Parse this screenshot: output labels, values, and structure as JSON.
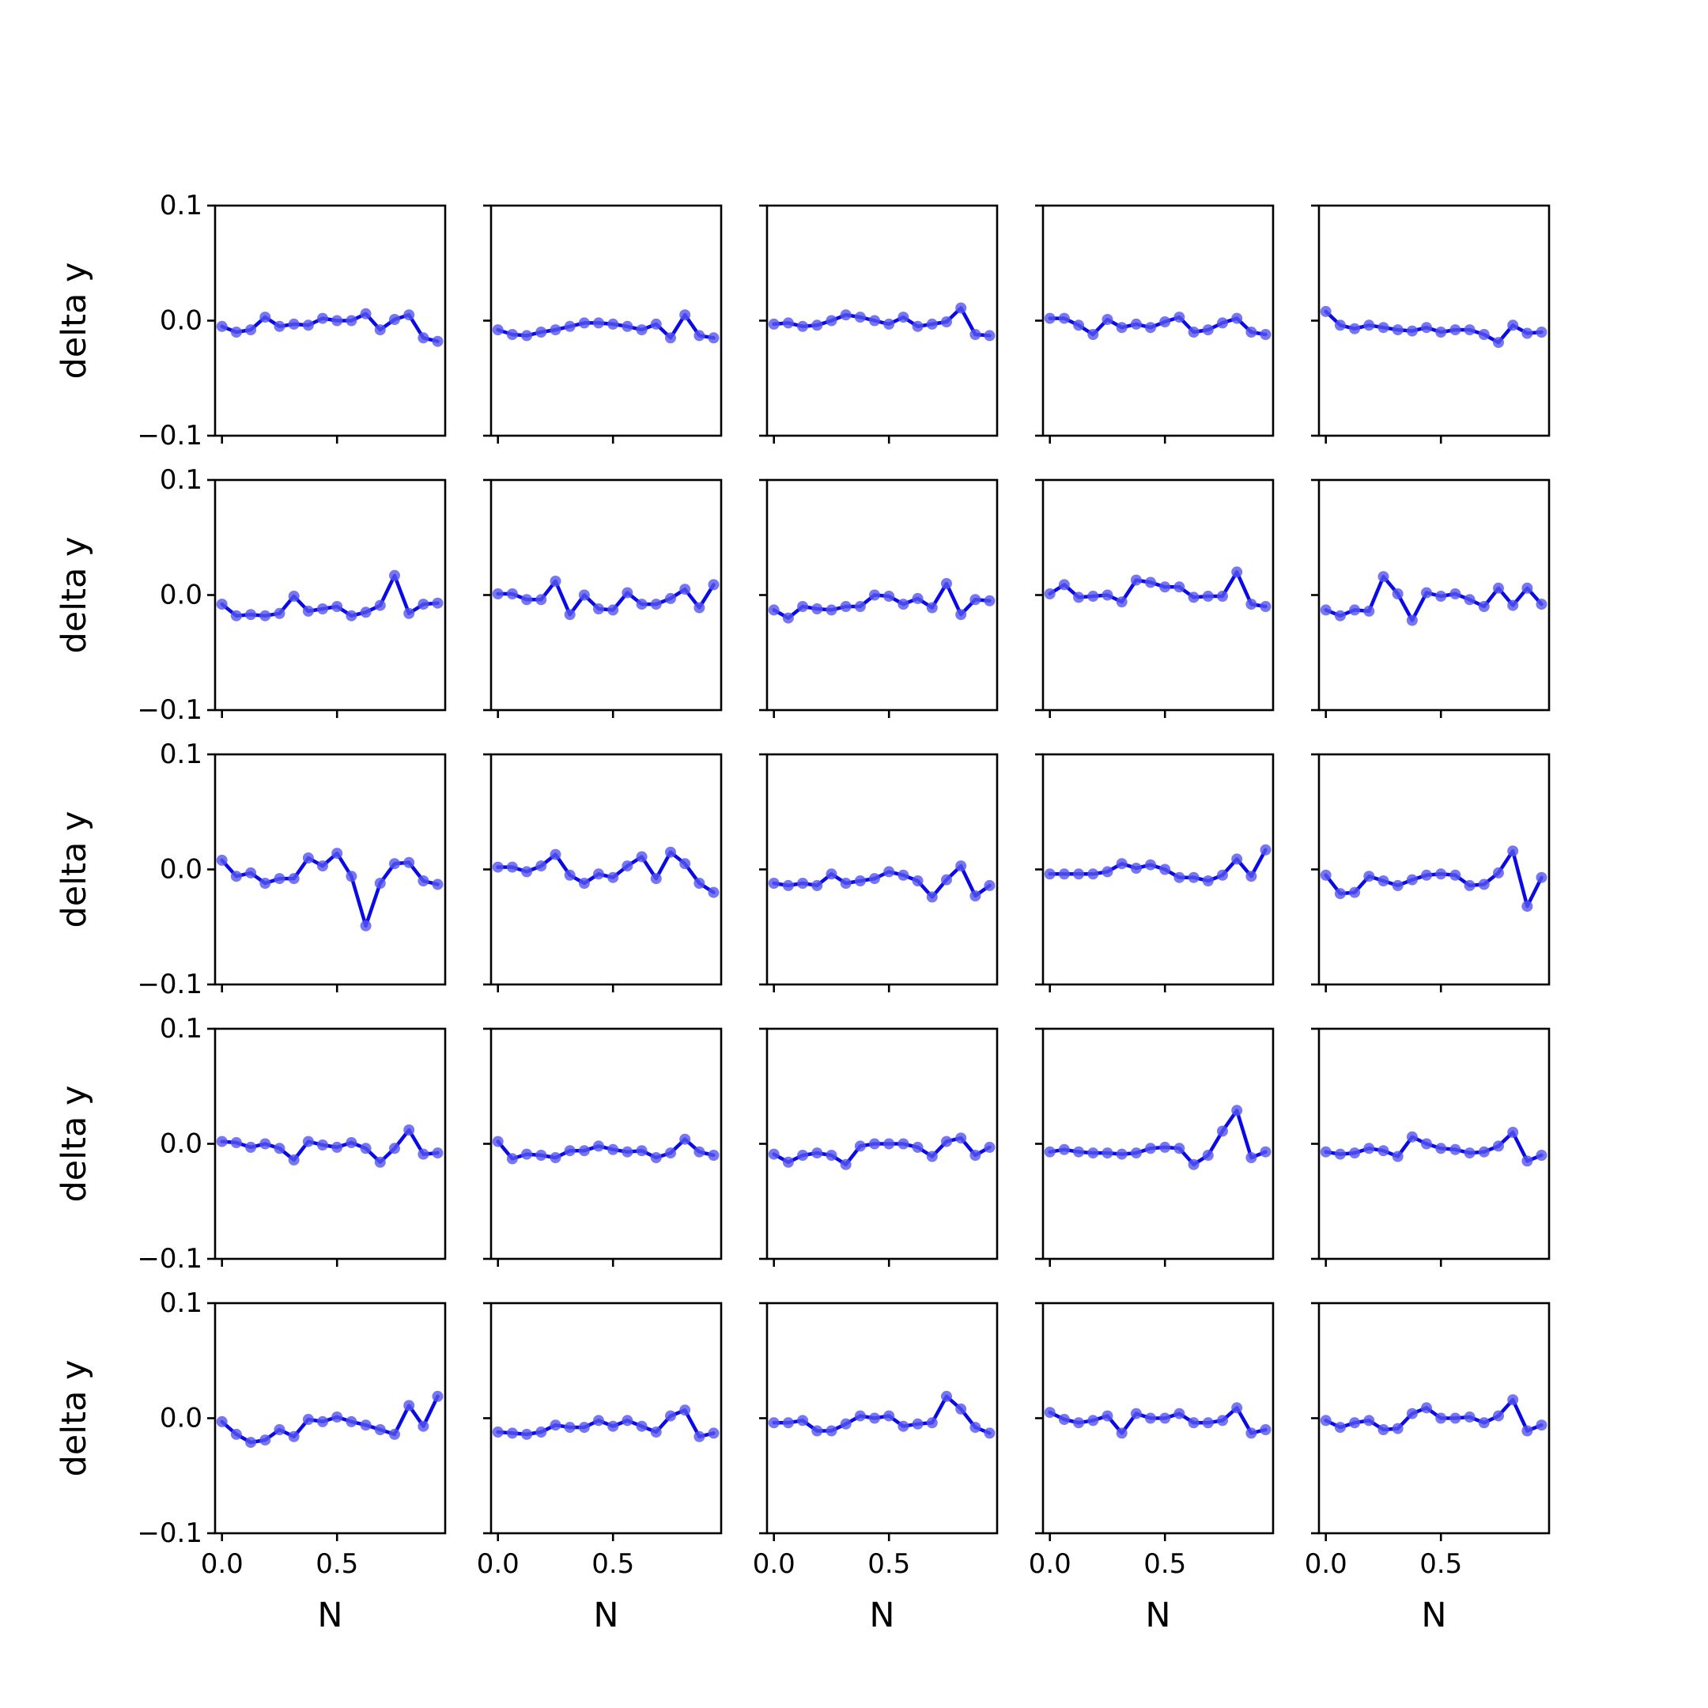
{
  "chart_data": {
    "type": "line",
    "layout": {
      "rows": 5,
      "cols": 5
    },
    "xlabel": "N",
    "ylabel": "delta y",
    "xlim": [
      -0.03,
      0.97
    ],
    "ylim": [
      -0.1,
      0.1
    ],
    "xticks": [
      0.0,
      0.5
    ],
    "xtick_labels": [
      "0.0",
      "0.5"
    ],
    "yticks": [
      -0.1,
      0.0,
      0.1
    ],
    "ytick_labels": [
      "−0.1",
      "0.0",
      "0.1"
    ],
    "x": [
      0.0,
      0.0625,
      0.125,
      0.1875,
      0.25,
      0.3125,
      0.375,
      0.4375,
      0.5,
      0.5625,
      0.625,
      0.6875,
      0.75,
      0.8125,
      0.875,
      0.9375
    ],
    "line_color": "#0a0ae6",
    "marker_color": "#5555f0",
    "panels": [
      {
        "values": [
          -0.005,
          -0.01,
          -0.008,
          0.003,
          -0.005,
          -0.003,
          -0.004,
          0.002,
          0.0,
          0.0,
          0.006,
          -0.008,
          0.001,
          0.005,
          -0.015,
          -0.018
        ]
      },
      {
        "values": [
          -0.008,
          -0.012,
          -0.013,
          -0.01,
          -0.008,
          -0.005,
          -0.002,
          -0.002,
          -0.003,
          -0.005,
          -0.008,
          -0.003,
          -0.015,
          0.005,
          -0.013,
          -0.015
        ]
      },
      {
        "values": [
          -0.003,
          -0.002,
          -0.005,
          -0.004,
          0.0,
          0.005,
          0.003,
          0.0,
          -0.003,
          0.003,
          -0.005,
          -0.003,
          -0.001,
          0.011,
          -0.012,
          -0.013
        ]
      },
      {
        "values": [
          0.002,
          0.002,
          -0.004,
          -0.012,
          0.001,
          -0.006,
          -0.003,
          -0.006,
          -0.001,
          0.003,
          -0.01,
          -0.008,
          -0.002,
          0.002,
          -0.01,
          -0.012
        ]
      },
      {
        "values": [
          0.008,
          -0.004,
          -0.007,
          -0.004,
          -0.006,
          -0.008,
          -0.009,
          -0.006,
          -0.01,
          -0.008,
          -0.008,
          -0.012,
          -0.019,
          -0.004,
          -0.011,
          -0.01
        ]
      },
      {
        "values": [
          -0.008,
          -0.018,
          -0.017,
          -0.018,
          -0.016,
          -0.001,
          -0.014,
          -0.012,
          -0.01,
          -0.018,
          -0.015,
          -0.009,
          0.017,
          -0.016,
          -0.008,
          -0.007
        ]
      },
      {
        "values": [
          0.001,
          0.001,
          -0.004,
          -0.004,
          0.012,
          -0.017,
          0.0,
          -0.012,
          -0.013,
          0.002,
          -0.008,
          -0.008,
          -0.003,
          0.005,
          -0.011,
          0.009
        ]
      },
      {
        "values": [
          -0.013,
          -0.02,
          -0.01,
          -0.012,
          -0.013,
          -0.01,
          -0.01,
          0.0,
          -0.001,
          -0.008,
          -0.003,
          -0.011,
          0.01,
          -0.017,
          -0.004,
          -0.005
        ]
      },
      {
        "values": [
          0.001,
          0.009,
          -0.002,
          -0.001,
          0.0,
          -0.006,
          0.013,
          0.011,
          0.007,
          0.007,
          -0.002,
          -0.001,
          -0.001,
          0.02,
          -0.008,
          -0.01
        ]
      },
      {
        "values": [
          -0.013,
          -0.018,
          -0.013,
          -0.014,
          0.016,
          0.001,
          -0.022,
          0.002,
          -0.001,
          0.001,
          -0.004,
          -0.01,
          0.006,
          -0.009,
          0.006,
          -0.008
        ]
      },
      {
        "values": [
          0.008,
          -0.006,
          -0.003,
          -0.012,
          -0.008,
          -0.008,
          0.01,
          0.003,
          0.014,
          -0.006,
          -0.049,
          -0.012,
          0.005,
          0.006,
          -0.01,
          -0.013
        ]
      },
      {
        "values": [
          0.002,
          0.002,
          -0.002,
          0.003,
          0.013,
          -0.005,
          -0.012,
          -0.004,
          -0.007,
          0.003,
          0.011,
          -0.008,
          0.015,
          0.005,
          -0.012,
          -0.02
        ]
      },
      {
        "values": [
          -0.012,
          -0.014,
          -0.012,
          -0.014,
          -0.004,
          -0.012,
          -0.01,
          -0.008,
          -0.002,
          -0.005,
          -0.01,
          -0.024,
          -0.009,
          0.003,
          -0.023,
          -0.014
        ]
      },
      {
        "values": [
          -0.004,
          -0.004,
          -0.004,
          -0.004,
          -0.002,
          0.005,
          0.001,
          0.004,
          0.0,
          -0.007,
          -0.007,
          -0.01,
          -0.005,
          0.009,
          -0.006,
          0.017
        ]
      },
      {
        "values": [
          -0.005,
          -0.021,
          -0.02,
          -0.006,
          -0.01,
          -0.014,
          -0.009,
          -0.005,
          -0.004,
          -0.005,
          -0.014,
          -0.013,
          -0.003,
          0.016,
          -0.032,
          -0.007
        ]
      },
      {
        "values": [
          0.002,
          0.001,
          -0.003,
          0.0,
          -0.004,
          -0.014,
          0.002,
          -0.001,
          -0.003,
          0.001,
          -0.004,
          -0.016,
          -0.004,
          0.012,
          -0.009,
          -0.008
        ]
      },
      {
        "values": [
          0.002,
          -0.013,
          -0.009,
          -0.01,
          -0.012,
          -0.006,
          -0.006,
          -0.002,
          -0.005,
          -0.007,
          -0.006,
          -0.012,
          -0.008,
          0.004,
          -0.007,
          -0.01
        ]
      },
      {
        "values": [
          -0.009,
          -0.016,
          -0.01,
          -0.008,
          -0.01,
          -0.018,
          -0.002,
          0.0,
          0.0,
          0.0,
          -0.003,
          -0.011,
          0.002,
          0.005,
          -0.01,
          -0.003
        ]
      },
      {
        "values": [
          -0.007,
          -0.005,
          -0.007,
          -0.008,
          -0.008,
          -0.009,
          -0.008,
          -0.004,
          -0.003,
          -0.004,
          -0.018,
          -0.01,
          0.011,
          0.029,
          -0.012,
          -0.007
        ]
      },
      {
        "values": [
          -0.007,
          -0.009,
          -0.008,
          -0.004,
          -0.006,
          -0.011,
          0.006,
          0.0,
          -0.004,
          -0.005,
          -0.008,
          -0.007,
          -0.002,
          0.01,
          -0.015,
          -0.01
        ]
      },
      {
        "values": [
          -0.003,
          -0.014,
          -0.021,
          -0.019,
          -0.01,
          -0.016,
          -0.001,
          -0.003,
          0.001,
          -0.003,
          -0.006,
          -0.01,
          -0.014,
          0.011,
          -0.007,
          0.019
        ]
      },
      {
        "values": [
          -0.012,
          -0.013,
          -0.014,
          -0.012,
          -0.006,
          -0.008,
          -0.008,
          -0.002,
          -0.007,
          -0.002,
          -0.007,
          -0.012,
          0.002,
          0.007,
          -0.016,
          -0.013
        ]
      },
      {
        "values": [
          -0.004,
          -0.004,
          -0.002,
          -0.011,
          -0.011,
          -0.005,
          0.002,
          0.0,
          0.002,
          -0.007,
          -0.005,
          -0.004,
          0.019,
          0.008,
          -0.008,
          -0.013
        ]
      },
      {
        "values": [
          0.005,
          -0.001,
          -0.004,
          -0.002,
          0.002,
          -0.013,
          0.004,
          0.0,
          0.0,
          0.004,
          -0.004,
          -0.004,
          -0.002,
          0.009,
          -0.013,
          -0.01
        ]
      },
      {
        "values": [
          -0.002,
          -0.008,
          -0.004,
          -0.002,
          -0.01,
          -0.009,
          0.004,
          0.009,
          0.0,
          0.0,
          0.001,
          -0.004,
          0.002,
          0.016,
          -0.011,
          -0.006
        ]
      }
    ]
  }
}
